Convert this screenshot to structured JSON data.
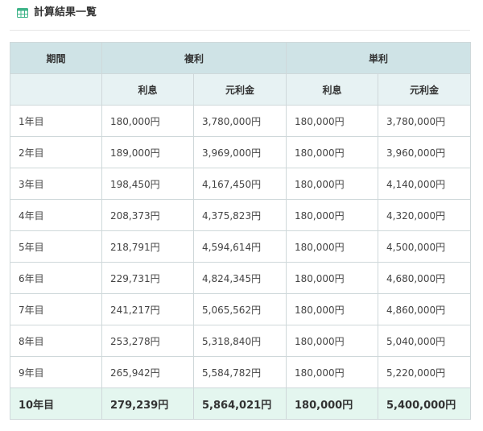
{
  "header": {
    "icon": "table-grid-icon",
    "title": "計算結果一覧",
    "accent_color": "#3eb489"
  },
  "table": {
    "group_headers": {
      "period": "期間",
      "compound": "複利",
      "simple": "単利"
    },
    "sub_headers": {
      "compound_interest": "利息",
      "compound_total": "元利金",
      "simple_interest": "利息",
      "simple_total": "元利金"
    },
    "rows": [
      {
        "period": "1年目",
        "c_interest": "180,000円",
        "c_total": "3,780,000円",
        "s_interest": "180,000円",
        "s_total": "3,780,000円"
      },
      {
        "period": "2年目",
        "c_interest": "189,000円",
        "c_total": "3,969,000円",
        "s_interest": "180,000円",
        "s_total": "3,960,000円"
      },
      {
        "period": "3年目",
        "c_interest": "198,450円",
        "c_total": "4,167,450円",
        "s_interest": "180,000円",
        "s_total": "4,140,000円"
      },
      {
        "period": "4年目",
        "c_interest": "208,373円",
        "c_total": "4,375,823円",
        "s_interest": "180,000円",
        "s_total": "4,320,000円"
      },
      {
        "period": "5年目",
        "c_interest": "218,791円",
        "c_total": "4,594,614円",
        "s_interest": "180,000円",
        "s_total": "4,500,000円"
      },
      {
        "period": "6年目",
        "c_interest": "229,731円",
        "c_total": "4,824,345円",
        "s_interest": "180,000円",
        "s_total": "4,680,000円"
      },
      {
        "period": "7年目",
        "c_interest": "241,217円",
        "c_total": "5,065,562円",
        "s_interest": "180,000円",
        "s_total": "4,860,000円"
      },
      {
        "period": "8年目",
        "c_interest": "253,278円",
        "c_total": "5,318,840円",
        "s_interest": "180,000円",
        "s_total": "5,040,000円"
      },
      {
        "period": "9年目",
        "c_interest": "265,942円",
        "c_total": "5,584,782円",
        "s_interest": "180,000円",
        "s_total": "5,220,000円"
      }
    ],
    "total_row": {
      "period": "10年目",
      "c_interest": "279,239円",
      "c_total": "5,864,021円",
      "s_interest": "180,000円",
      "s_total": "5,400,000円"
    }
  }
}
